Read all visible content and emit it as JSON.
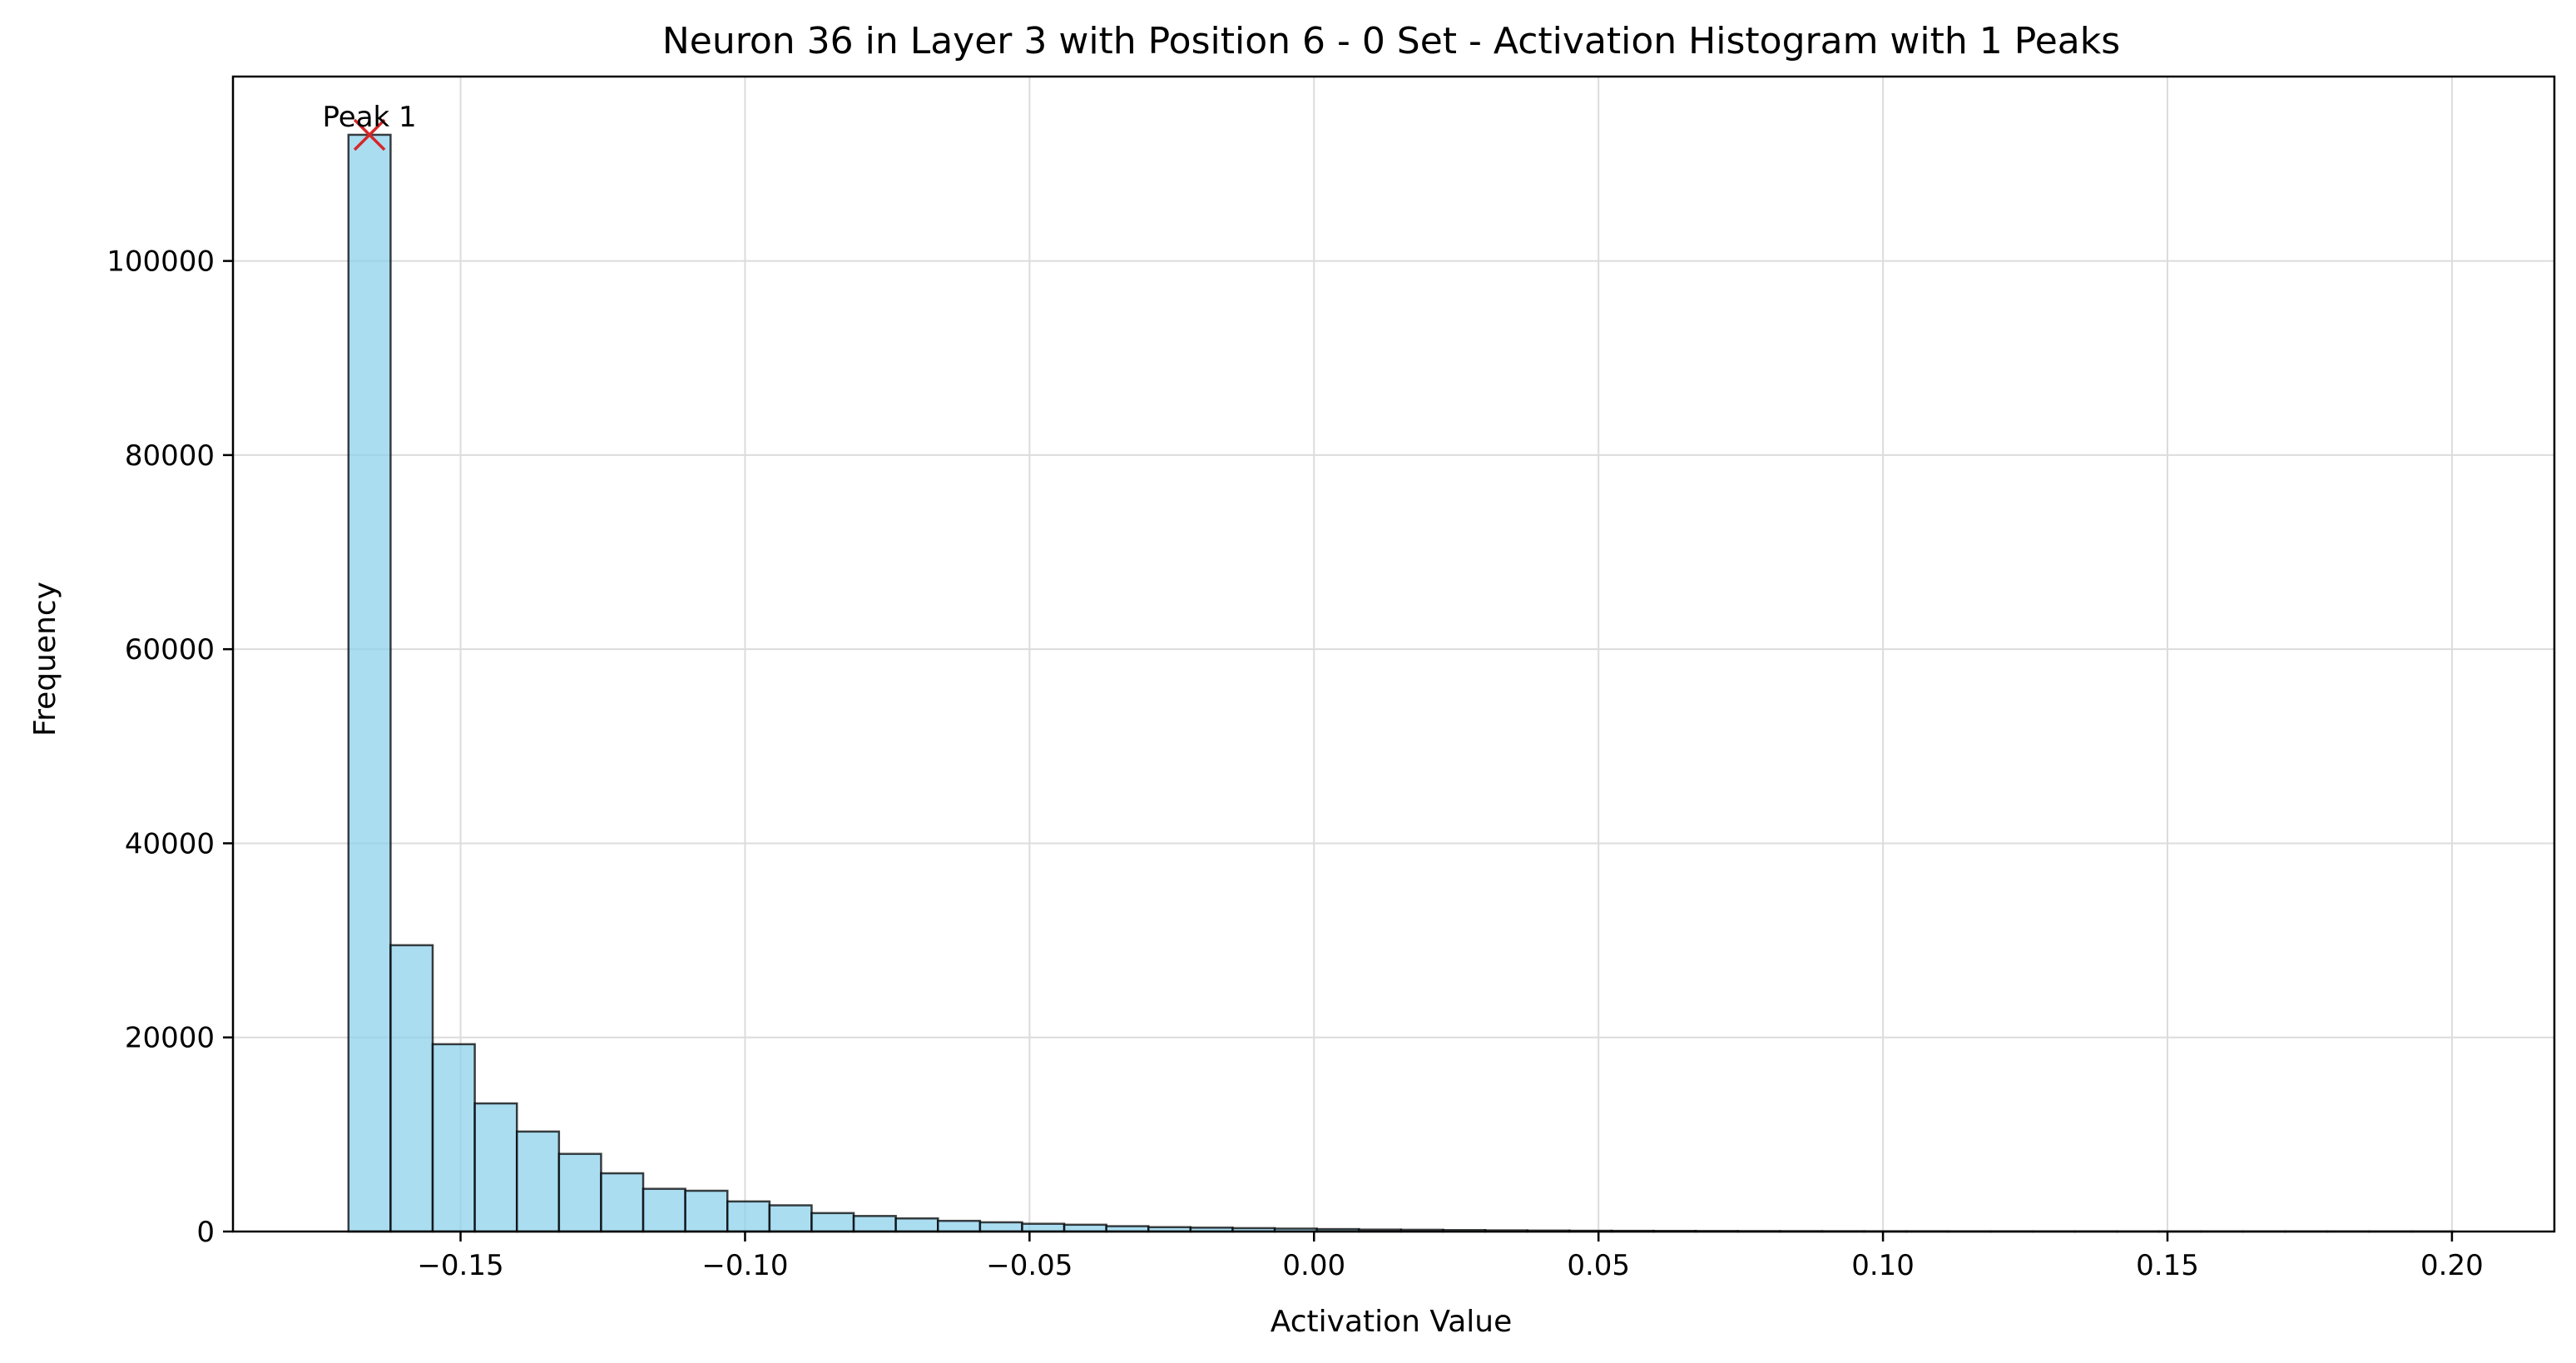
{
  "chart_data": {
    "type": "bar",
    "title": "Neuron 36 in Layer 3 with Position 6 - 0 Set - Activation Histogram with 1 Peaks",
    "xlabel": "Activation Value",
    "ylabel": "Frequency",
    "xlim": [
      -0.19,
      0.218
    ],
    "ylim": [
      0,
      119000
    ],
    "grid": true,
    "bar_color": "#87CEEB",
    "bar_edge_color": "#000000",
    "peak_marker_color": "#d62728",
    "xticks": [
      {
        "value": -0.15,
        "label": "−0.15"
      },
      {
        "value": -0.1,
        "label": "−0.10"
      },
      {
        "value": -0.05,
        "label": "−0.05"
      },
      {
        "value": 0.0,
        "label": "0.00"
      },
      {
        "value": 0.05,
        "label": "0.05"
      },
      {
        "value": 0.1,
        "label": "0.10"
      },
      {
        "value": 0.15,
        "label": "0.15"
      },
      {
        "value": 0.2,
        "label": "0.20"
      }
    ],
    "yticks": [
      {
        "value": 0,
        "label": "0"
      },
      {
        "value": 20000,
        "label": "20000"
      },
      {
        "value": 40000,
        "label": "40000"
      },
      {
        "value": 60000,
        "label": "60000"
      },
      {
        "value": 80000,
        "label": "80000"
      },
      {
        "value": 100000,
        "label": "100000"
      }
    ],
    "bin_start": -0.1697,
    "bin_end": 0.2003,
    "values": [
      113000,
      29500,
      19300,
      13200,
      10300,
      8000,
      6000,
      4400,
      4200,
      3100,
      2700,
      1900,
      1600,
      1350,
      1100,
      950,
      800,
      700,
      550,
      450,
      400,
      350,
      300,
      250,
      200,
      180,
      150,
      120,
      100,
      80,
      70,
      60,
      50,
      40,
      35,
      30,
      25,
      25,
      20,
      20,
      15,
      15,
      10,
      10,
      10,
      8,
      8,
      6,
      5,
      5
    ],
    "peaks": [
      {
        "x": -0.166,
        "y": 113000,
        "label": "Peak 1"
      }
    ]
  }
}
